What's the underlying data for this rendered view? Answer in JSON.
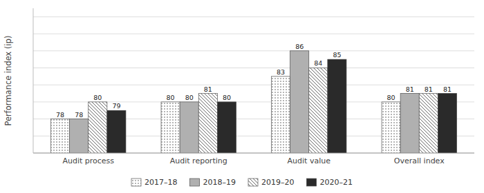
{
  "chart_data": {
    "type": "bar",
    "categories": [
      "Audit process",
      "Audit reporting",
      "Audit value",
      "Overall index"
    ],
    "series": [
      {
        "name": "2017–18",
        "color": "#ffffff",
        "values": [
          78,
          80,
          83,
          80
        ]
      },
      {
        "name": "2018–19",
        "color": "#b0b0b0",
        "values": [
          78,
          80,
          86,
          81
        ]
      },
      {
        "name": "2019–20",
        "color": "#ffffff",
        "values": [
          80,
          81,
          84,
          81
        ]
      },
      {
        "name": "2020–21",
        "color": "#2a2a2a",
        "values": [
          79,
          80,
          85,
          81
        ]
      }
    ],
    "y_label": "Performance index (ip)",
    "ylim": [
      74,
      91
    ],
    "yticks": [
      76,
      78,
      80,
      82,
      84,
      86,
      88,
      90
    ],
    "grid": true,
    "tick_labels": "x",
    "data_labels": true,
    "legend": "bottom"
  }
}
